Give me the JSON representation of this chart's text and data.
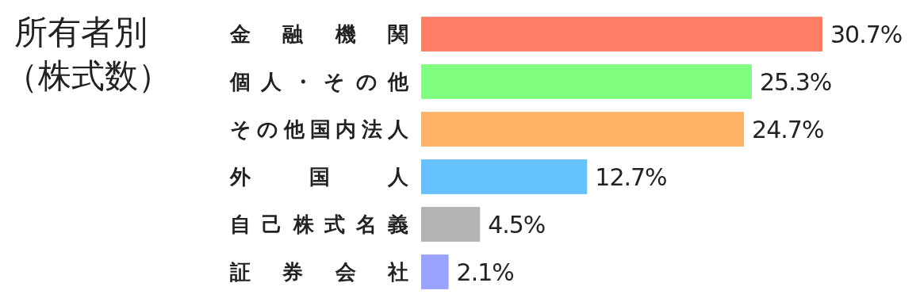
{
  "chart_data": {
    "type": "bar",
    "orientation": "horizontal",
    "title": "所有者別",
    "subtitle": "（株式数）",
    "categories": [
      "金融機関",
      "個人・その他",
      "その他国内法人",
      "外国人",
      "自己株式名義",
      "証券会社"
    ],
    "values": [
      30.7,
      25.3,
      24.7,
      12.7,
      4.5,
      2.1
    ],
    "colors": [
      "#ff7f66",
      "#80ff80",
      "#ffb366",
      "#66c2ff",
      "#b3b3b3",
      "#99a3ff"
    ],
    "value_labels": [
      "30.7%",
      "25.3%",
      "24.7%",
      "12.7%",
      "4.5%",
      "2.1%"
    ]
  }
}
